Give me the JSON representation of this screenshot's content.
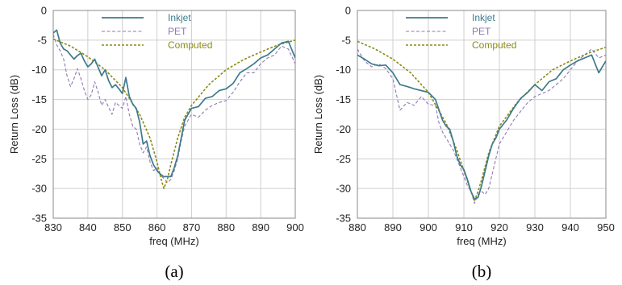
{
  "chart_data": [
    {
      "type": "line",
      "caption": "(a)",
      "xlabel": "freq (MHz)",
      "ylabel": "Return Loss (dB)",
      "xlim": [
        830,
        900
      ],
      "ylim": [
        -35,
        0
      ],
      "xticks": [
        830,
        840,
        850,
        860,
        870,
        880,
        890,
        900
      ],
      "yticks": [
        0,
        -5,
        -10,
        -15,
        -20,
        -25,
        -30,
        -35
      ],
      "grid": true,
      "legend": "top-center",
      "series": [
        {
          "name": "Inkjet",
          "color": "#3d7a8c",
          "style": "solid",
          "x": [
            830,
            831,
            832,
            833,
            834,
            835,
            836,
            837,
            838,
            839,
            840,
            841,
            842,
            843,
            844,
            845,
            846,
            847,
            848,
            849,
            850,
            851,
            852,
            853,
            854,
            855,
            856,
            857,
            858,
            859,
            860,
            861,
            862,
            863,
            864,
            865,
            866,
            867,
            868,
            869,
            870,
            872,
            874,
            876,
            878,
            880,
            882,
            884,
            886,
            888,
            890,
            892,
            894,
            896,
            898,
            900
          ],
          "y": [
            -3.8,
            -3.3,
            -5.5,
            -6.5,
            -6.8,
            -7.5,
            -8.2,
            -7.6,
            -7.2,
            -8.5,
            -9.5,
            -9.0,
            -8.2,
            -9.6,
            -11.0,
            -10.0,
            -11.8,
            -13.0,
            -12.5,
            -13.2,
            -14.0,
            -11.3,
            -14.5,
            -15.8,
            -16.5,
            -18.8,
            -22.5,
            -22.0,
            -24.5,
            -26.0,
            -27.0,
            -27.6,
            -28.0,
            -28.0,
            -28.0,
            -26.5,
            -24.5,
            -21.5,
            -18.5,
            -17.5,
            -16.5,
            -16.2,
            -14.8,
            -14.5,
            -13.5,
            -13.2,
            -12.3,
            -10.5,
            -9.8,
            -9.0,
            -8.0,
            -7.5,
            -6.5,
            -5.5,
            -5.2,
            -8.0
          ]
        },
        {
          "name": "PET",
          "color": "#8f7ab3",
          "style": "dashed",
          "x": [
            830,
            831,
            832,
            833,
            834,
            835,
            836,
            837,
            838,
            839,
            840,
            841,
            842,
            843,
            844,
            845,
            846,
            847,
            848,
            849,
            850,
            851,
            852,
            853,
            854,
            855,
            856,
            857,
            858,
            859,
            860,
            861,
            862,
            863,
            864,
            865,
            866,
            867,
            868,
            869,
            870,
            872,
            874,
            876,
            878,
            880,
            882,
            884,
            886,
            888,
            890,
            892,
            894,
            896,
            898,
            900
          ],
          "y": [
            -4.0,
            -5.8,
            -6.8,
            -8.2,
            -11.0,
            -12.8,
            -11.5,
            -9.8,
            -11.5,
            -13.5,
            -15.0,
            -14.2,
            -12.0,
            -13.8,
            -16.0,
            -15.0,
            -16.3,
            -17.5,
            -15.5,
            -16.0,
            -16.5,
            -14.5,
            -17.5,
            -19.5,
            -20.0,
            -22.5,
            -24.0,
            -23.0,
            -25.5,
            -27.0,
            -26.5,
            -27.8,
            -28.3,
            -29.0,
            -28.5,
            -27.0,
            -25.0,
            -22.0,
            -19.5,
            -18.5,
            -17.5,
            -18.0,
            -16.8,
            -16.0,
            -15.5,
            -15.2,
            -13.8,
            -12.0,
            -10.5,
            -10.5,
            -9.0,
            -8.0,
            -7.5,
            -6.0,
            -6.5,
            -9.0
          ]
        },
        {
          "name": "Computed",
          "color": "#8a8a14",
          "style": "dotted",
          "x": [
            830,
            835,
            840,
            845,
            850,
            855,
            858,
            860,
            861,
            862,
            863,
            864,
            866,
            868,
            870,
            875,
            880,
            885,
            890,
            895,
            900
          ],
          "y": [
            -4.8,
            -6.0,
            -7.8,
            -10.0,
            -13.0,
            -17.5,
            -21.5,
            -25.5,
            -28.0,
            -30.0,
            -28.5,
            -26.0,
            -21.5,
            -18.0,
            -16.0,
            -12.5,
            -10.0,
            -8.3,
            -7.0,
            -5.8,
            -5.0
          ]
        }
      ]
    },
    {
      "type": "line",
      "caption": "(b)",
      "xlabel": "freq (MHz)",
      "ylabel": "Return Loss (dB)",
      "xlim": [
        880,
        950
      ],
      "ylim": [
        -35,
        0
      ],
      "xticks": [
        880,
        890,
        900,
        910,
        920,
        930,
        940,
        950
      ],
      "yticks": [
        0,
        -5,
        -10,
        -15,
        -20,
        -25,
        -30,
        -35
      ],
      "grid": true,
      "legend": "top-center",
      "series": [
        {
          "name": "Inkjet",
          "color": "#3d7a8c",
          "style": "solid",
          "x": [
            880,
            882,
            884,
            886,
            888,
            890,
            892,
            894,
            896,
            898,
            900,
            902,
            903,
            904,
            905,
            906,
            907,
            908,
            909,
            910,
            911,
            912,
            913,
            914,
            915,
            916,
            917,
            918,
            919,
            920,
            922,
            924,
            926,
            928,
            930,
            932,
            934,
            936,
            938,
            940,
            942,
            944,
            946,
            948,
            950
          ],
          "y": [
            -7.5,
            -8.2,
            -9.0,
            -9.3,
            -9.2,
            -10.5,
            -12.5,
            -12.8,
            -13.2,
            -13.5,
            -13.8,
            -15.0,
            -16.8,
            -18.5,
            -19.5,
            -20.0,
            -22.0,
            -24.5,
            -26.0,
            -26.8,
            -28.5,
            -30.5,
            -31.8,
            -31.5,
            -29.5,
            -27.0,
            -24.5,
            -22.5,
            -21.5,
            -20.0,
            -18.5,
            -16.5,
            -14.8,
            -13.8,
            -12.5,
            -13.5,
            -12.0,
            -11.5,
            -10.0,
            -9.2,
            -8.5,
            -8.0,
            -7.5,
            -10.5,
            -8.5
          ]
        },
        {
          "name": "PET",
          "color": "#8f7ab3",
          "style": "dashed",
          "x": [
            880,
            882,
            884,
            886,
            888,
            890,
            892,
            894,
            896,
            898,
            900,
            902,
            903,
            904,
            905,
            906,
            907,
            908,
            909,
            910,
            911,
            912,
            913,
            914,
            915,
            916,
            917,
            918,
            919,
            920,
            922,
            924,
            926,
            928,
            930,
            932,
            934,
            936,
            938,
            940,
            942,
            944,
            946,
            948,
            950
          ],
          "y": [
            -6.5,
            -8.5,
            -9.5,
            -9.0,
            -9.8,
            -11.5,
            -16.8,
            -15.5,
            -16.0,
            -14.5,
            -15.8,
            -16.0,
            -19.0,
            -20.5,
            -21.5,
            -22.5,
            -23.5,
            -25.0,
            -26.5,
            -28.0,
            -29.5,
            -30.5,
            -32.5,
            -31.0,
            -30.5,
            -31.0,
            -30.0,
            -27.5,
            -25.0,
            -22.5,
            -20.5,
            -18.5,
            -17.0,
            -15.5,
            -14.5,
            -14.0,
            -13.5,
            -12.5,
            -11.5,
            -10.0,
            -8.5,
            -7.5,
            -6.5,
            -8.0,
            -7.5
          ]
        },
        {
          "name": "Computed",
          "color": "#8a8a14",
          "style": "dotted",
          "x": [
            880,
            885,
            890,
            895,
            900,
            905,
            908,
            910,
            912,
            913,
            914,
            915,
            917,
            920,
            925,
            930,
            935,
            940,
            945,
            950
          ],
          "y": [
            -5.2,
            -6.5,
            -8.2,
            -10.5,
            -13.8,
            -19.0,
            -23.5,
            -27.0,
            -30.5,
            -32.0,
            -30.5,
            -28.5,
            -24.0,
            -19.5,
            -15.5,
            -12.5,
            -10.0,
            -8.5,
            -7.2,
            -6.2
          ]
        }
      ]
    }
  ]
}
